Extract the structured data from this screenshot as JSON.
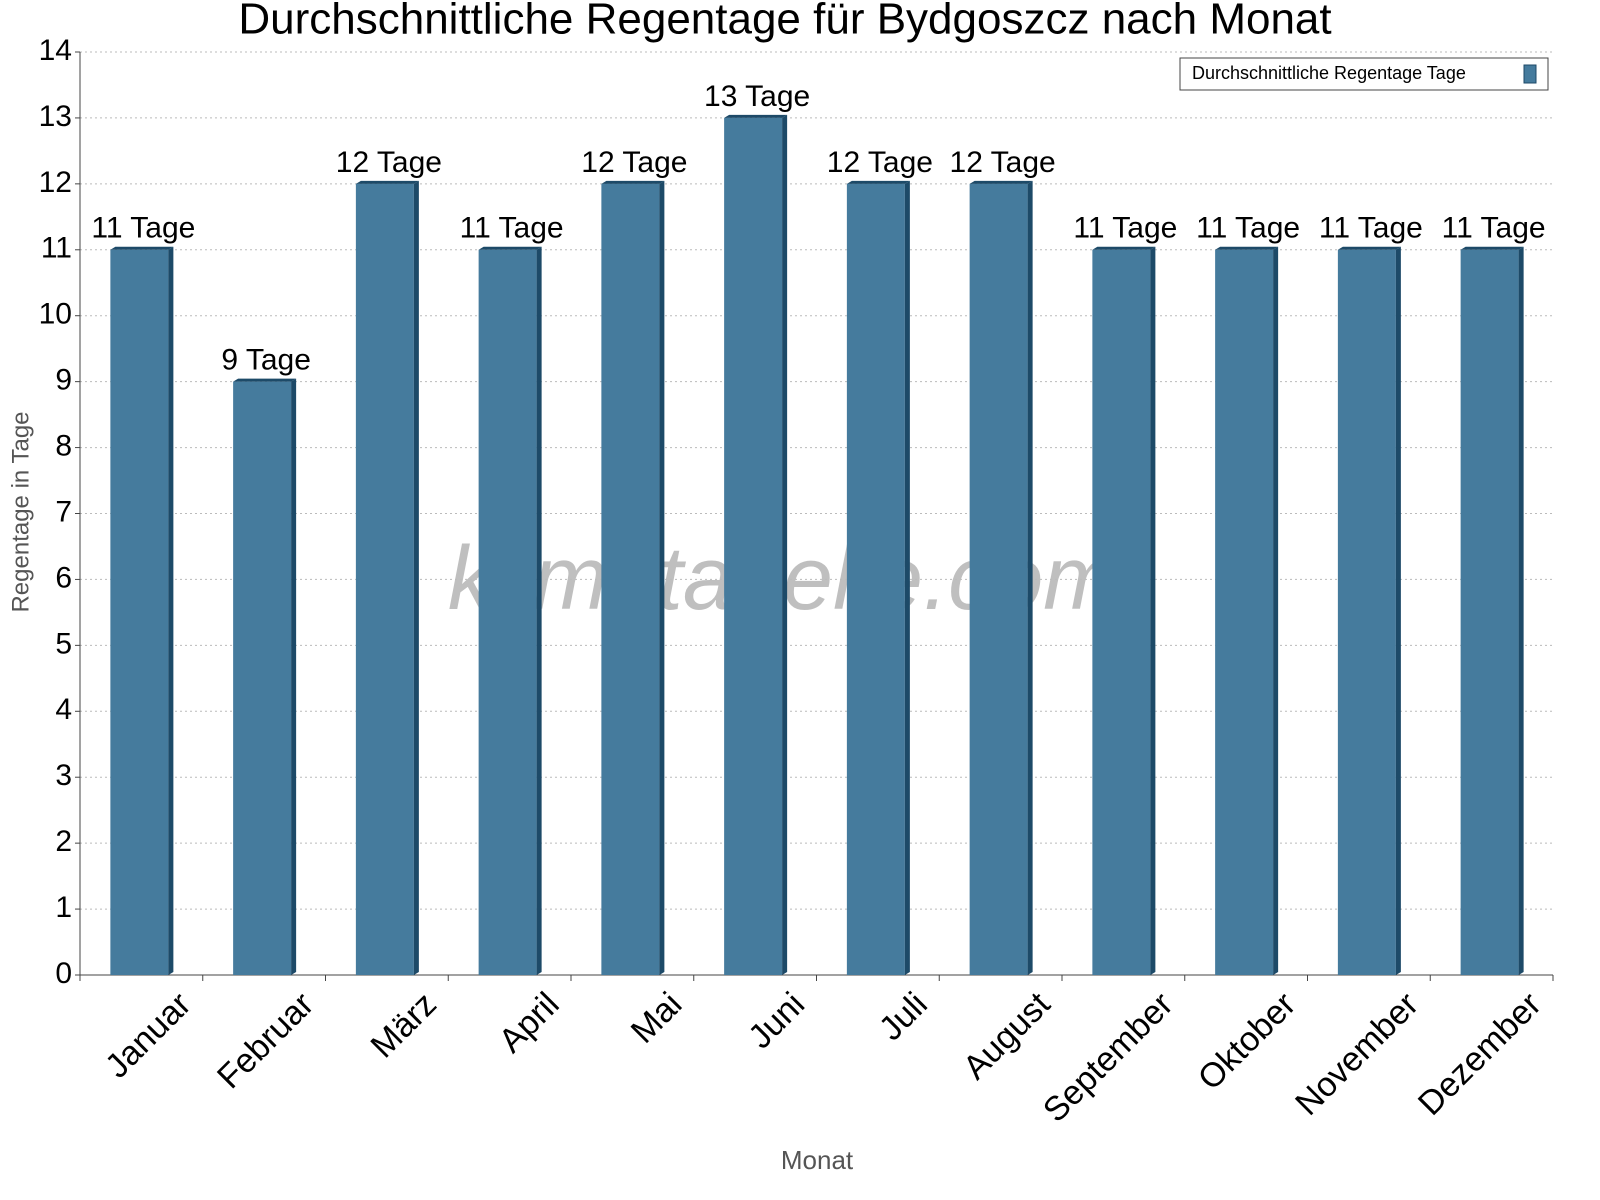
{
  "chart_data": {
    "type": "bar",
    "title": "Durchschnittliche Regentage für Bydgoszcz nach Monat",
    "x_label": "Monat",
    "y_label": "Regentage in Tage",
    "watermark": "klimatabelle.com",
    "categories": [
      "Januar",
      "Februar",
      "März",
      "April",
      "Mai",
      "Juni",
      "Juli",
      "August",
      "September",
      "Oktober",
      "November",
      "Dezember"
    ],
    "series": [
      {
        "name": "Durchschnittliche Regentage Tage",
        "color": "#457b9d",
        "values": [
          11,
          9,
          12,
          11,
          12,
          13,
          12,
          12,
          11,
          11,
          11,
          11
        ],
        "value_labels": [
          "11 Tage",
          "9 Tage",
          "12 Tage",
          "11 Tage",
          "12 Tage",
          "13 Tage",
          "12 Tage",
          "12 Tage",
          "11 Tage",
          "11 Tage",
          "11 Tage",
          "11 Tage"
        ]
      }
    ],
    "ylim": [
      0,
      14
    ],
    "yticks": [
      0,
      1,
      2,
      3,
      4,
      5,
      6,
      7,
      8,
      9,
      10,
      11,
      12,
      13,
      14
    ],
    "grid": true,
    "legend": "top-right"
  }
}
